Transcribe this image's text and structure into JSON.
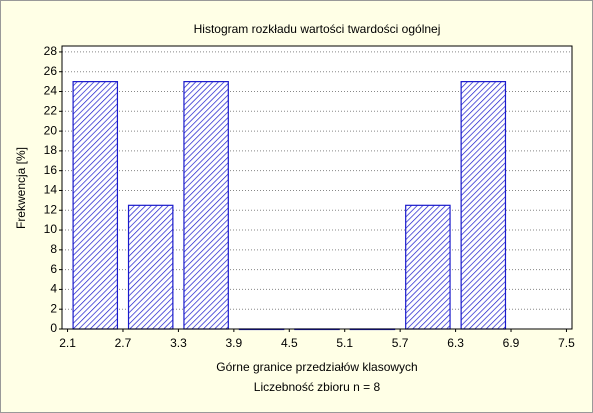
{
  "chart_data": {
    "type": "histogram",
    "title": "Histogram rozkładu wartości twardości ogólnej",
    "xlabel": "Górne granice przedziałów klasowych",
    "subtitle": "Liczebność zbioru  n = 8",
    "ylabel": "Frekwencja [%]",
    "bins": [
      2.1,
      2.7,
      3.3,
      3.9,
      4.5,
      5.1,
      5.7,
      6.3,
      6.9
    ],
    "values": [
      25,
      12.5,
      25,
      0,
      0,
      0,
      12.5,
      25
    ],
    "color": "#1a1acc",
    "xlim": [
      2.04,
      7.56
    ],
    "xticks": [
      2.1,
      2.7,
      3.3,
      3.9,
      4.5,
      5.1,
      5.7,
      6.3,
      6.9,
      7.5
    ],
    "ylim": [
      0,
      28.6
    ],
    "yticks": [
      0,
      2,
      4,
      6,
      8,
      10,
      12,
      14,
      16,
      18,
      20,
      22,
      24,
      26,
      28
    ],
    "grid": true
  }
}
